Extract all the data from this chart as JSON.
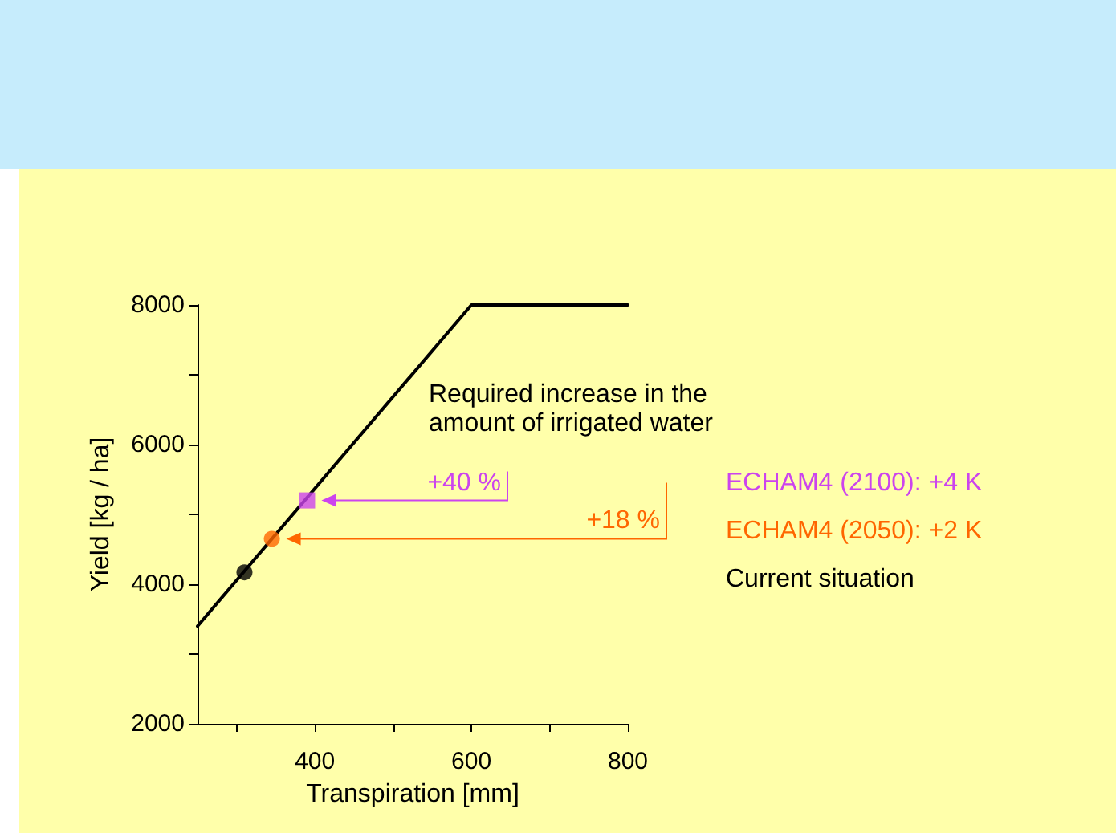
{
  "chart_data": {
    "type": "scatter",
    "xlabel": "Transpiration [mm]",
    "ylabel": "Yield [kg / ha]",
    "xlim": [
      250,
      800
    ],
    "xticks": [
      {
        "value": 300,
        "label": null
      },
      400,
      {
        "value": 500,
        "label": null
      },
      600,
      {
        "value": 700,
        "label": null
      },
      800
    ],
    "ylim": [
      2000,
      8000
    ],
    "yticks": [
      2000,
      {
        "value": 3000,
        "label": null
      },
      4000,
      {
        "value": 5000,
        "label": null
      },
      6000,
      {
        "value": 7000,
        "label": null
      },
      8000
    ],
    "grid": false,
    "legend": "right",
    "marker": "circle",
    "series": [
      {
        "type": "line",
        "color": "#000000",
        "x": [
          250,
          600,
          800
        ],
        "values": [
          3400,
          8000,
          8000
        ],
        "marker": "none",
        "line_style": "solid"
      },
      {
        "name": "ECHAM4 (2100): +4 K",
        "color": "#cc44ee",
        "x": [
          390
        ],
        "values": [
          5200
        ],
        "marker": "square"
      },
      {
        "name": "ECHAM4 (2050): +2 K",
        "color": "#ff6600",
        "x": [
          345
        ],
        "values": [
          4650
        ]
      },
      {
        "name": "Current situation",
        "color": "#000000",
        "x": [
          310
        ],
        "values": [
          4170
        ]
      }
    ],
    "annotations": [
      "Required increase in the amount of irrigated water",
      "+40 %",
      "+18 %"
    ]
  }
}
